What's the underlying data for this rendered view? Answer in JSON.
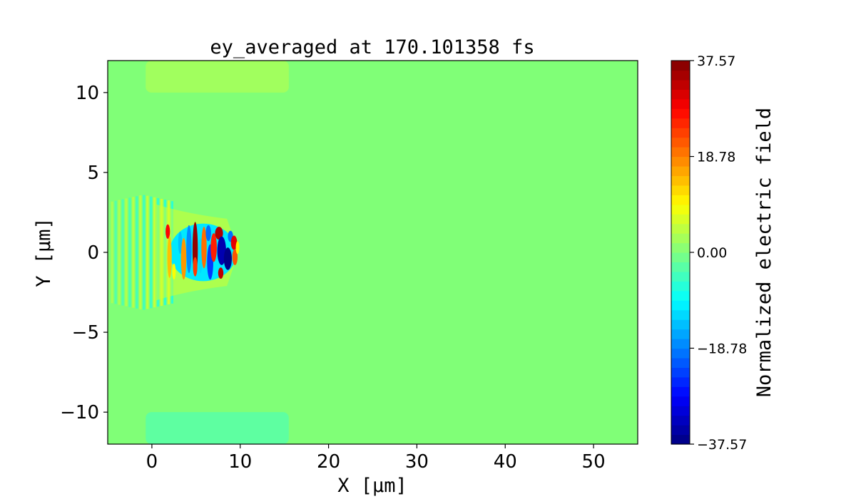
{
  "chart_data": {
    "type": "heatmap",
    "title": "ey_averaged at 170.101358 fs",
    "xlabel": "X [μm]",
    "ylabel": "Y [μm]",
    "xlim": [
      -5,
      55
    ],
    "ylim": [
      -12,
      12
    ],
    "x_ticks": [
      0,
      10,
      20,
      30,
      40,
      50
    ],
    "x_tick_labels": [
      "0",
      "10",
      "20",
      "30",
      "40",
      "50"
    ],
    "y_ticks": [
      -10,
      -5,
      0,
      5,
      10
    ],
    "y_tick_labels": [
      "−10",
      "−5",
      "0",
      "5",
      "10"
    ],
    "colorbar": {
      "label": "Normalized electric field",
      "colormap": "jet",
      "vmin": -37.57,
      "vmax": 37.57,
      "ticks": [
        -37.57,
        -18.78,
        0.0,
        18.78,
        37.57
      ],
      "tick_labels": [
        "−37.57",
        "−18.78",
        "0.00",
        "18.78",
        "37.57"
      ]
    },
    "background_value": 0.0,
    "features": [
      {
        "name": "upper band",
        "x_range": [
          -0.7,
          15.5
        ],
        "y_range": [
          10.0,
          12.0
        ],
        "value": 2.5
      },
      {
        "name": "lower band",
        "x_range": [
          -0.7,
          15.5
        ],
        "y_range": [
          -12.0,
          -10.0
        ],
        "value": -2.5
      },
      {
        "name": "laser wavefronts",
        "x_range": [
          -5,
          2
        ],
        "y_range": [
          -4,
          4
        ],
        "value_range": [
          -8,
          8
        ]
      },
      {
        "name": "plasma channel",
        "x_range": [
          0,
          10
        ],
        "y_range": [
          -2.5,
          2.5
        ],
        "value_range": [
          -37.57,
          37.57
        ]
      }
    ]
  }
}
